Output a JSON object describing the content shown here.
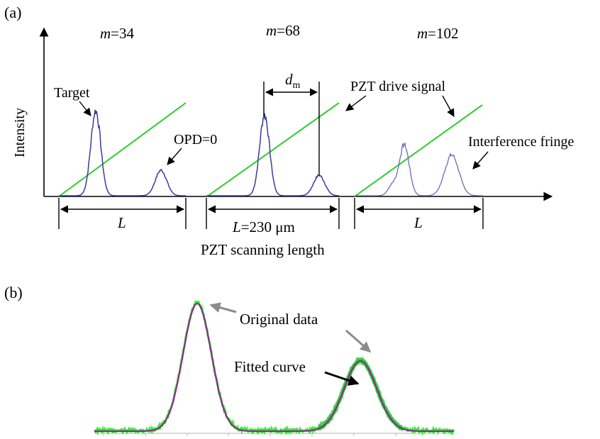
{
  "chart_data": [
    {
      "panel": "(a)",
      "type": "line",
      "ylabel": "Intensity",
      "xlabel": "PZT scanning length",
      "series": [
        {
          "name": "m=34",
          "m_label": "m",
          "m_value": "=34",
          "target_peak": 1.0,
          "opd_peak": 0.3,
          "drive_signal": true
        },
        {
          "name": "m=68",
          "m_label": "m",
          "m_value": "=68",
          "target_peak": 0.95,
          "opd_peak": 0.24,
          "drive_signal": true
        },
        {
          "name": "m=102",
          "m_label": "m",
          "m_value": "=102",
          "target_peak": 0.6,
          "opd_peak": 0.48,
          "drive_signal": true
        }
      ],
      "annotations": {
        "target": "Target",
        "opd0": "OPD=0",
        "dm_main": "d",
        "dm_sub": "m",
        "pzt_drive": "PZT drive signal",
        "interference": "Interference fringe",
        "L1": "L",
        "L2_italic": "L",
        "L2_value": "=230 μm",
        "L3": "L"
      },
      "colors": {
        "fringe": "#3a3aa0",
        "drive_signal": "#33cc33"
      }
    },
    {
      "panel": "(b)",
      "type": "line",
      "series": [
        {
          "name": "Original data",
          "color": "#33ee33"
        },
        {
          "name": "Fitted curve",
          "color": "#8e2b8e"
        }
      ],
      "peaks": [
        {
          "position": 0.3,
          "height": 1.0
        },
        {
          "position": 0.75,
          "height": 0.55
        }
      ],
      "annotations": {
        "original": "Original data",
        "fitted": "Fitted curve"
      },
      "colors": {
        "original_arrow": "#8c8c8c",
        "fitted_arrow": "#000000"
      }
    }
  ],
  "panels": {
    "a": "(a)",
    "b": "(b)"
  }
}
